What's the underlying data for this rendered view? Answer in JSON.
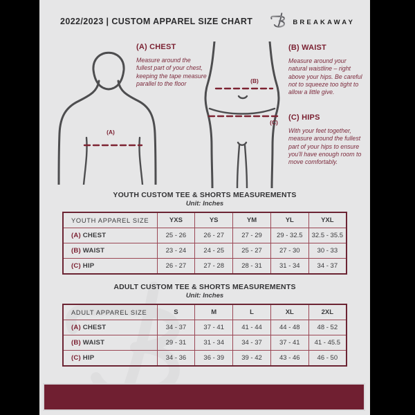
{
  "header": {
    "title": "2022/2023  |  CUSTOM APPAREL SIZE CHART",
    "brand": "BREAKAWAY"
  },
  "guide": {
    "chest": {
      "heading": "(A) CHEST",
      "marker": "(A)",
      "body": "Measure around the fullest part of your chest, keeping the tape measure parallel to the floor"
    },
    "waist": {
      "heading": "(B) WAIST",
      "marker": "(B)",
      "body": "Measure around your natural waistline – right above your hips. Be careful not to squeeze too tight to allow a little give."
    },
    "hips": {
      "heading": "(C) HIPS",
      "marker": "(C)",
      "body": "With your feet together, measure around the fullest part of your hips to ensure you'll have enough room to move comfortably."
    }
  },
  "tables": [
    {
      "title": "YOUTH CUSTOM TEE & SHORTS MEASUREMENTS",
      "unit": "Unit: Inches",
      "label_header": "YOUTH APPAREL SIZE",
      "columns": [
        "YXS",
        "YS",
        "YM",
        "YL",
        "YXL"
      ],
      "rows": [
        {
          "prefix": "(A)",
          "label": "CHEST",
          "values": [
            "25 - 26",
            "26 - 27",
            "27 - 29",
            "29 - 32.5",
            "32.5 - 35.5"
          ]
        },
        {
          "prefix": "(B)",
          "label": "WAIST",
          "values": [
            "23 - 24",
            "24 - 25",
            "25 - 27",
            "27 - 30",
            "30 - 33"
          ]
        },
        {
          "prefix": "(C)",
          "label": "HIP",
          "values": [
            "26 - 27",
            "27 - 28",
            "28 - 31",
            "31 - 34",
            "34 - 37"
          ]
        }
      ]
    },
    {
      "title": "ADULT CUSTOM TEE & SHORTS MEASUREMENTS",
      "unit": "Unit: Inches",
      "label_header": "ADULT APPAREL SIZE",
      "columns": [
        "S",
        "M",
        "L",
        "XL",
        "2XL"
      ],
      "rows": [
        {
          "prefix": "(A)",
          "label": "CHEST",
          "values": [
            "34 - 37",
            "37 - 41",
            "41 - 44",
            "44 - 48",
            "48 - 52"
          ]
        },
        {
          "prefix": "(B)",
          "label": "WAIST",
          "values": [
            "29 - 31",
            "31 - 34",
            "34 - 37",
            "37 - 41",
            "41 - 45.5"
          ]
        },
        {
          "prefix": "(C)",
          "label": "HIP",
          "values": [
            "34 - 36",
            "36 - 39",
            "39 - 42",
            "43 - 46",
            "46 - 50"
          ]
        }
      ]
    }
  ],
  "colors": {
    "page_bg": "#e6e6e7",
    "maroon_text": "#7a1f30",
    "table_border": "#9a4654",
    "footer_bar": "#701f31",
    "figure_stroke": "#4d4d4f",
    "text_dark": "#3a3a3c"
  }
}
